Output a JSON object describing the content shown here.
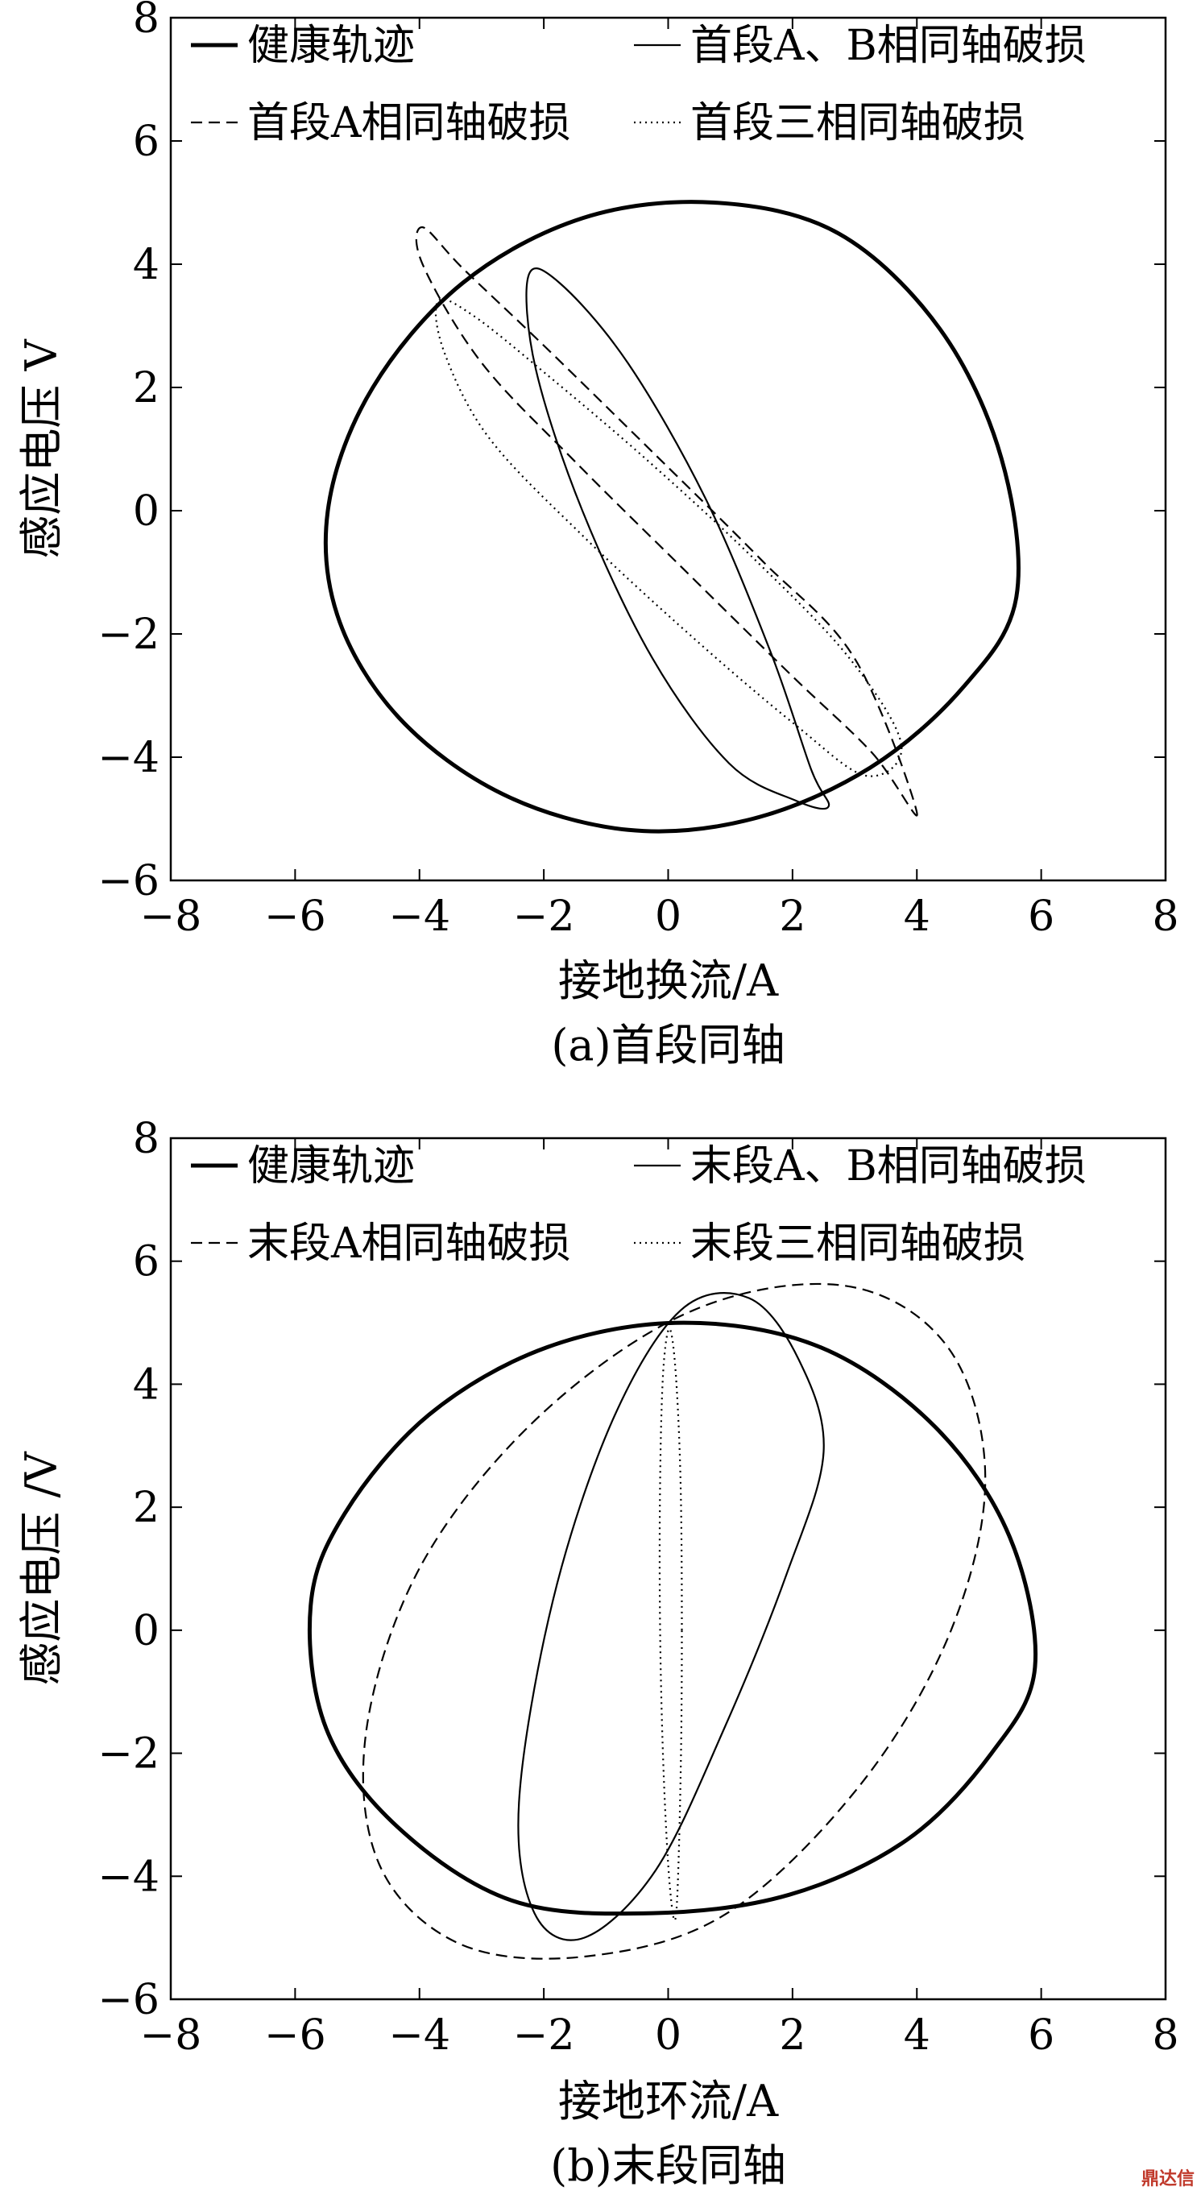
{
  "watermark": "鼎达信",
  "chart_data": [
    {
      "type": "line",
      "caption": "(a)首段同轴",
      "xlabel": "接地换流/A",
      "ylabel": "感应电压 V",
      "xlim": [
        -8,
        8
      ],
      "ylim": [
        -6,
        8
      ],
      "xticks": [
        -8,
        -6,
        -4,
        -2,
        0,
        2,
        4,
        6,
        8
      ],
      "yticks": [
        -6,
        -4,
        -2,
        0,
        2,
        4,
        6,
        8
      ],
      "legend_position": "top",
      "series": [
        {
          "name": "健康轨迹",
          "style": "thick-solid",
          "x": [
            5.6,
            5.36,
            4.37,
            2.74,
            0.74,
            -1.37,
            -3.3,
            -4.75,
            -5.46,
            -5.32,
            -4.33,
            -2.66,
            -0.64,
            1.36,
            3.25,
            4.75,
            5.6
          ],
          "y": [
            -1.4,
            0.85,
            2.95,
            4.5,
            5.0,
            4.75,
            3.7,
            2.0,
            0.1,
            -1.7,
            -3.36,
            -4.6,
            -5.18,
            -5.0,
            -4.17,
            -2.86,
            -1.4
          ]
        },
        {
          "name": "首段A、B相同轴破损",
          "style": "solid",
          "x": [
            2.3,
            1.65,
            0.6,
            -0.65,
            -1.75,
            -2.25,
            -2.13,
            -1.38,
            -0.25,
            0.98,
            2.04,
            2.58,
            2.3
          ],
          "y": [
            -4.2,
            -2.3,
            0.2,
            2.4,
            3.7,
            3.8,
            2.3,
            0.0,
            -2.4,
            -4.1,
            -4.7,
            -4.8,
            -4.2
          ]
        },
        {
          "name": "首段A相同轴破损",
          "style": "dashed",
          "x": [
            4.0,
            3.28,
            1.97,
            0.25,
            -1.5,
            -3.0,
            -3.95,
            -3.95,
            -3.3,
            -1.98,
            -0.25,
            1.5,
            3.0,
            4.0
          ],
          "y": [
            -4.9,
            -3.93,
            -2.66,
            -0.95,
            0.8,
            2.4,
            4.0,
            4.6,
            3.93,
            2.66,
            0.95,
            -0.8,
            -2.4,
            -4.9
          ]
        },
        {
          "name": "首段三相同轴破损",
          "style": "dotted",
          "x": [
            3.75,
            2.92,
            1.4,
            -0.36,
            -2.0,
            -3.14,
            -3.7,
            -3.6,
            -2.88,
            -1.36,
            0.4,
            2.04,
            3.18,
            3.75
          ],
          "y": [
            -3.8,
            -2.4,
            -0.8,
            0.84,
            2.25,
            3.17,
            3.4,
            2.57,
            1.18,
            -0.42,
            -2.06,
            -3.47,
            -4.3,
            -3.8
          ]
        }
      ]
    },
    {
      "type": "line",
      "caption": "(b)末段同轴",
      "xlabel": "接地环流/A",
      "ylabel": "感应电压 /V",
      "xlim": [
        -8,
        8
      ],
      "ylim": [
        -6,
        8
      ],
      "xticks": [
        -8,
        -6,
        -4,
        -2,
        0,
        2,
        4,
        6,
        8
      ],
      "yticks": [
        -6,
        -4,
        -2,
        0,
        2,
        4,
        6,
        8
      ],
      "legend_position": "top",
      "series": [
        {
          "name": "健康轨迹",
          "style": "thick-solid",
          "x": [
            5.9,
            5.5,
            4.3,
            2.45,
            0.25,
            -1.95,
            -3.85,
            -5.2,
            -5.75,
            -5.5,
            -4.35,
            -2.5,
            -0.25,
            1.95,
            3.85,
            5.2,
            5.9
          ],
          "y": [
            -0.6,
            1.5,
            3.3,
            4.6,
            5.0,
            4.6,
            3.5,
            1.9,
            0.4,
            -1.6,
            -3.2,
            -4.4,
            -4.6,
            -4.3,
            -3.4,
            -2.0,
            -0.6
          ]
        },
        {
          "name": "末段A、B相同轴破损",
          "style": "solid",
          "x": [
            2.5,
            2.1,
            1.3,
            0.2,
            -0.9,
            -1.85,
            -2.4,
            -2.15,
            -1.35,
            -0.2,
            0.9,
            1.9,
            2.5
          ],
          "y": [
            2.9,
            4.4,
            5.4,
            5.2,
            3.4,
            0.5,
            -2.8,
            -4.6,
            -5.0,
            -3.9,
            -1.6,
            0.9,
            2.9
          ]
        },
        {
          "name": "末段A相同轴破损",
          "style": "dashed",
          "x": [
            5.1,
            4.5,
            2.85,
            0.4,
            -2.05,
            -3.95,
            -4.85,
            -4.65,
            -3.35,
            -1.3,
            0.95,
            3.1,
            4.55,
            5.1
          ],
          "y": [
            2.5,
            4.6,
            5.6,
            5.2,
            3.5,
            1.1,
            -1.6,
            -3.8,
            -5.1,
            -5.3,
            -4.6,
            -2.5,
            0.0,
            2.5
          ]
        },
        {
          "name": "末段三相同轴破损",
          "style": "dotted",
          "x": [
            0.22,
            0.2,
            0.12,
            0.02,
            -0.08,
            -0.13,
            -0.13,
            -0.07,
            0.03,
            0.13,
            0.2,
            0.22
          ],
          "y": [
            0.0,
            2.4,
            4.2,
            4.9,
            4.2,
            2.4,
            0.0,
            -2.4,
            -4.2,
            -4.6,
            -2.4,
            0.0
          ]
        }
      ]
    }
  ]
}
